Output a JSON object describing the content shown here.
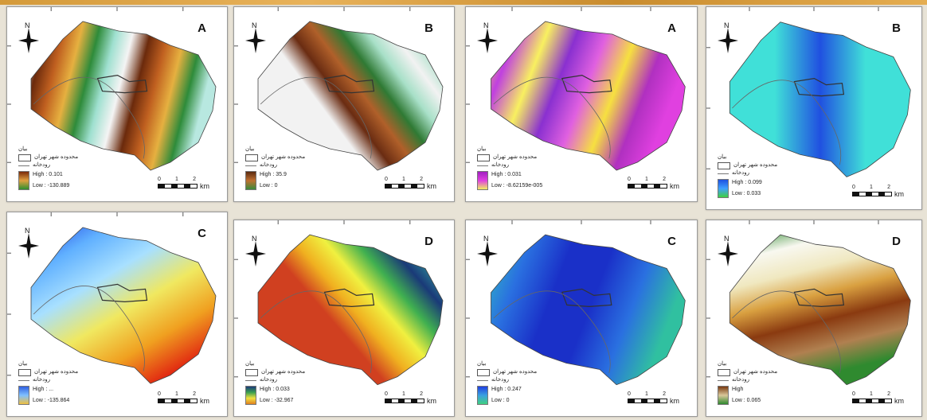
{
  "colors": {
    "background": "#e8e3d6",
    "panel_border": "#9a9a9a",
    "basin_outline": "#444444"
  },
  "icons": {
    "north_arrow": "compass-rose-icon",
    "city_boundary": "polygon-outline-icon",
    "river": "line-icon"
  },
  "common": {
    "north_label": "N",
    "legend_box_label": "محدوده شهر تهران",
    "legend_line_label": "رودخانه",
    "legend_title": "بیان",
    "scale_ticks": [
      "0",
      "1",
      "2"
    ],
    "scale_unit": "km"
  },
  "panels": [
    {
      "letter": "A",
      "high": "High : 0.101",
      "low": "Low : -130.889",
      "style": "bands_a"
    },
    {
      "letter": "B",
      "high": "High : 35.9",
      "low": "Low : 0",
      "style": "bands_b"
    },
    {
      "letter": "A",
      "high": "High : 0.031",
      "low": "Low : -8.62159e-005",
      "style": "aspect"
    },
    {
      "letter": "B",
      "high": "High : 0.099",
      "low": "Low : 0.033",
      "style": "water"
    },
    {
      "letter": "C",
      "high": "High : ...",
      "low": "Low : -135.864",
      "style": "dem"
    },
    {
      "letter": "D",
      "high": "High : 0.033",
      "low": "Low : -32.967",
      "style": "bands_d"
    },
    {
      "letter": "C",
      "high": "High : 0.247",
      "low": "Low : 0",
      "style": "blue"
    },
    {
      "letter": "D",
      "high": "High",
      "low": "Low : 0.065",
      "style": "land"
    }
  ]
}
